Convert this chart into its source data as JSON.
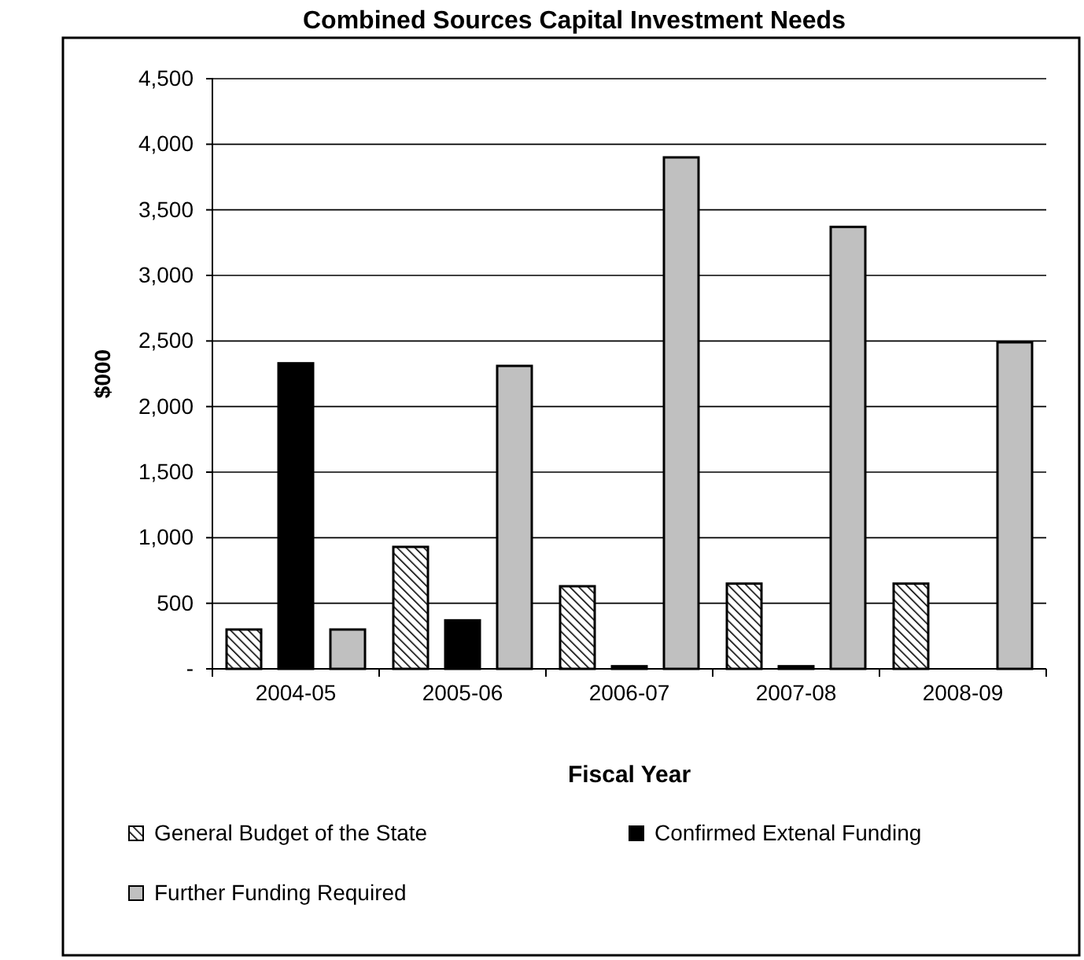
{
  "chart_data": {
    "type": "bar",
    "title": "Combined Sources Capital Investment Needs",
    "xlabel": "Fiscal Year",
    "ylabel": "$000",
    "categories": [
      "2004-05",
      "2005-06",
      "2006-07",
      "2007-08",
      "2008-09"
    ],
    "series": [
      {
        "name": "General Budget of the State",
        "color": "#000000",
        "values": [
          300,
          930,
          630,
          650,
          650
        ]
      },
      {
        "name": "Confirmed Extenal Funding",
        "color": "#000000",
        "values": [
          2330,
          370,
          20,
          20,
          0
        ]
      },
      {
        "name": "Further Funding Required",
        "color": "#c0c0c0",
        "values": [
          300,
          2310,
          3900,
          3370,
          2490
        ]
      }
    ],
    "ylim": [
      0,
      4500
    ],
    "yticks": [
      {
        "value": 0,
        "label": "-"
      },
      {
        "value": 500,
        "label": "500"
      },
      {
        "value": 1000,
        "label": "1,000"
      },
      {
        "value": 1500,
        "label": "1,500"
      },
      {
        "value": 2000,
        "label": "2,000"
      },
      {
        "value": 2500,
        "label": "2,500"
      },
      {
        "value": 3000,
        "label": "3,000"
      },
      {
        "value": 3500,
        "label": "3,500"
      },
      {
        "value": 4000,
        "label": "4,000"
      },
      {
        "value": 4500,
        "label": "4,500"
      }
    ],
    "grid": "y",
    "legend": "bottom"
  }
}
